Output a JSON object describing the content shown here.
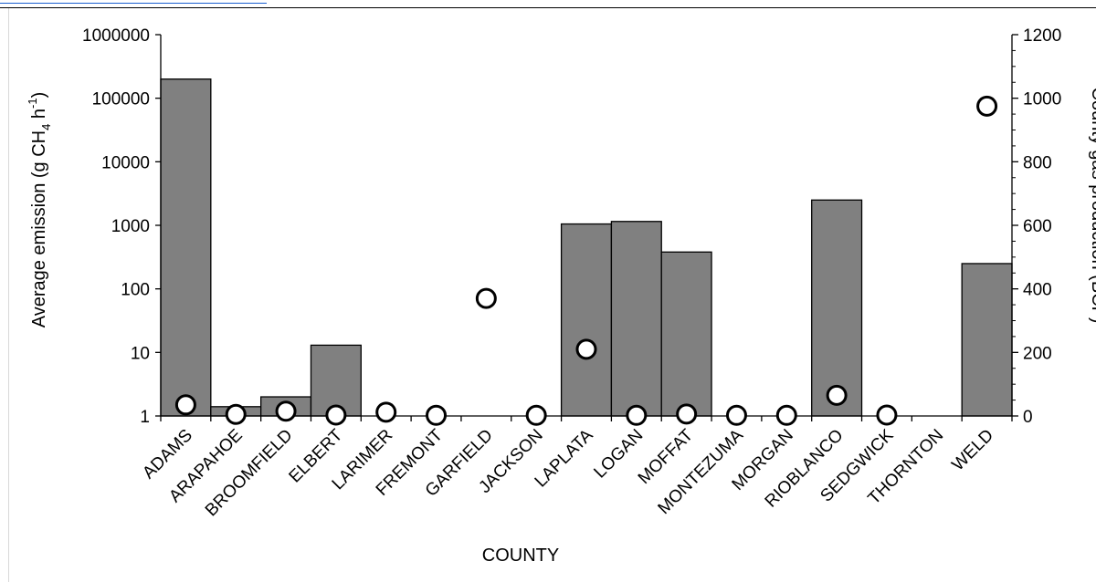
{
  "chart_data": {
    "type": "bar",
    "xlabel": "COUNTY",
    "ylabel": "Average emission (g CH",
    "ylabel_sub": "4",
    "ylabel_mid": " h",
    "ylabel_sup": "-1",
    "ylabel_end": ")",
    "y2label": "County gas production (BCF)",
    "yscale": "log",
    "ylim": [
      1,
      1000000
    ],
    "yticks": [
      "1",
      "10",
      "100",
      "1000",
      "10000",
      "100000",
      "1000000"
    ],
    "y2lim": [
      0,
      1200
    ],
    "y2ticks": [
      "0",
      "200",
      "400",
      "600",
      "800",
      "1000",
      "1200"
    ],
    "categories": [
      "ADAMS",
      "ARAPAHOE",
      "BROOMFIELD",
      "ELBERT",
      "LARIMER",
      "FREMONT",
      "GARFIELD",
      "JACKSON",
      "LAPLATA",
      "LOGAN",
      "MOFFAT",
      "MONTEZUMA",
      "MORGAN",
      "RIOBLANCO",
      "SEDGWICK",
      "THORNTON",
      "WELD"
    ],
    "series": [
      {
        "kind": "bar",
        "axis": "left",
        "color": "#808080",
        "values": [
          200000,
          1.4,
          2,
          13,
          null,
          null,
          null,
          null,
          1050,
          1150,
          380,
          null,
          null,
          2500,
          null,
          null,
          250
        ]
      },
      {
        "kind": "marker",
        "axis": "right",
        "marker": "open-circle",
        "values": [
          35,
          5,
          15,
          3,
          12,
          2,
          370,
          2,
          210,
          2,
          6,
          2,
          2,
          65,
          3,
          null,
          975
        ]
      }
    ],
    "grid": false,
    "legend": "none"
  }
}
